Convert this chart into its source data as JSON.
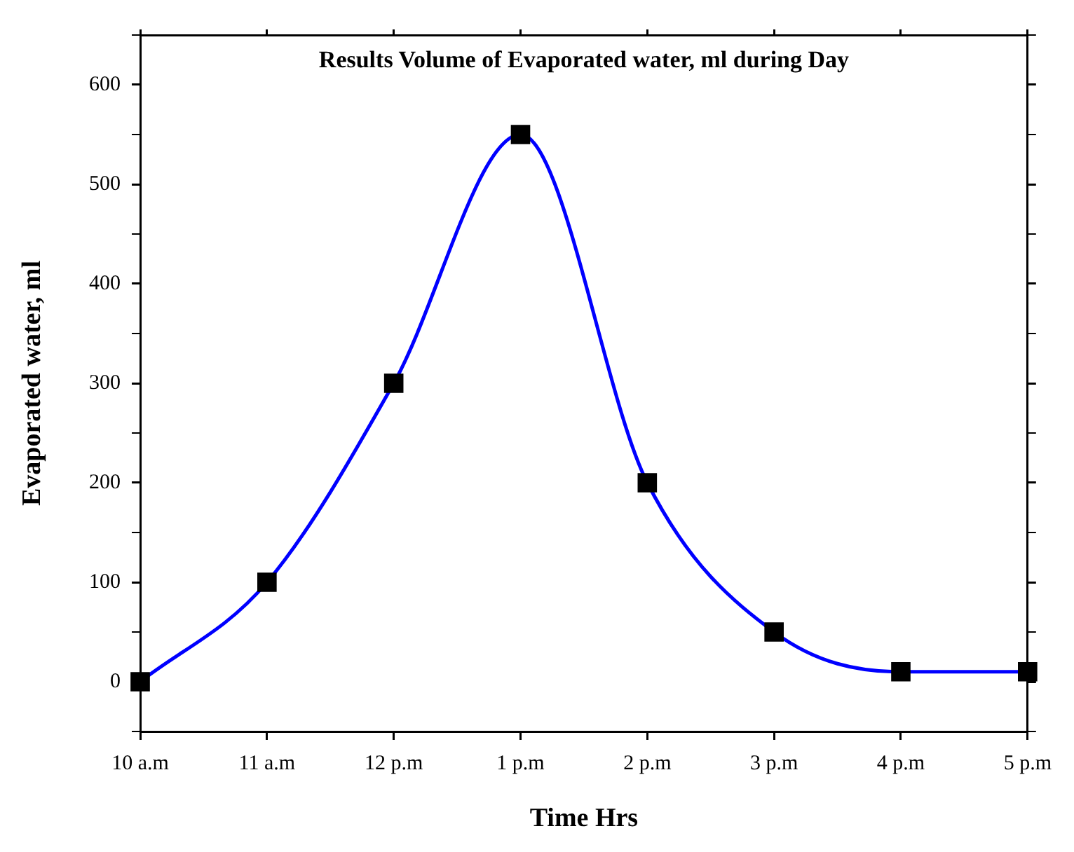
{
  "chart_data": {
    "type": "line",
    "title": "Results Volume of Evaporated water, ml during Day",
    "xlabel": "Time Hrs",
    "ylabel": "Evaporated water, ml",
    "categories": [
      "10 a.m",
      "11 a.m",
      "12 p.m",
      "1 p.m",
      "2 p.m",
      "3 p.m",
      "4 p.m",
      "5 p.m"
    ],
    "series": [
      {
        "color": "#0000ff",
        "colors": [
          "#000000",
          "#000000",
          "#000000",
          "#000000",
          "#000000",
          "#000000",
          "#000000",
          "#000000"
        ],
        "values": [
          0,
          100,
          300,
          550,
          200,
          50,
          10,
          10
        ]
      }
    ],
    "ylim": [
      -50,
      650
    ],
    "yticks": [
      {
        "value": -50,
        "label": null
      },
      0,
      {
        "value": 50,
        "label": null
      },
      100,
      {
        "value": 150,
        "label": null
      },
      200,
      {
        "value": 250,
        "label": null
      },
      300,
      {
        "value": 350,
        "label": null
      },
      400,
      {
        "value": 450,
        "label": null
      },
      500,
      {
        "value": 550,
        "label": null
      },
      600,
      {
        "value": 650,
        "label": null
      }
    ],
    "grid": false,
    "legend": false,
    "marker": "square",
    "line_style": "solid"
  }
}
